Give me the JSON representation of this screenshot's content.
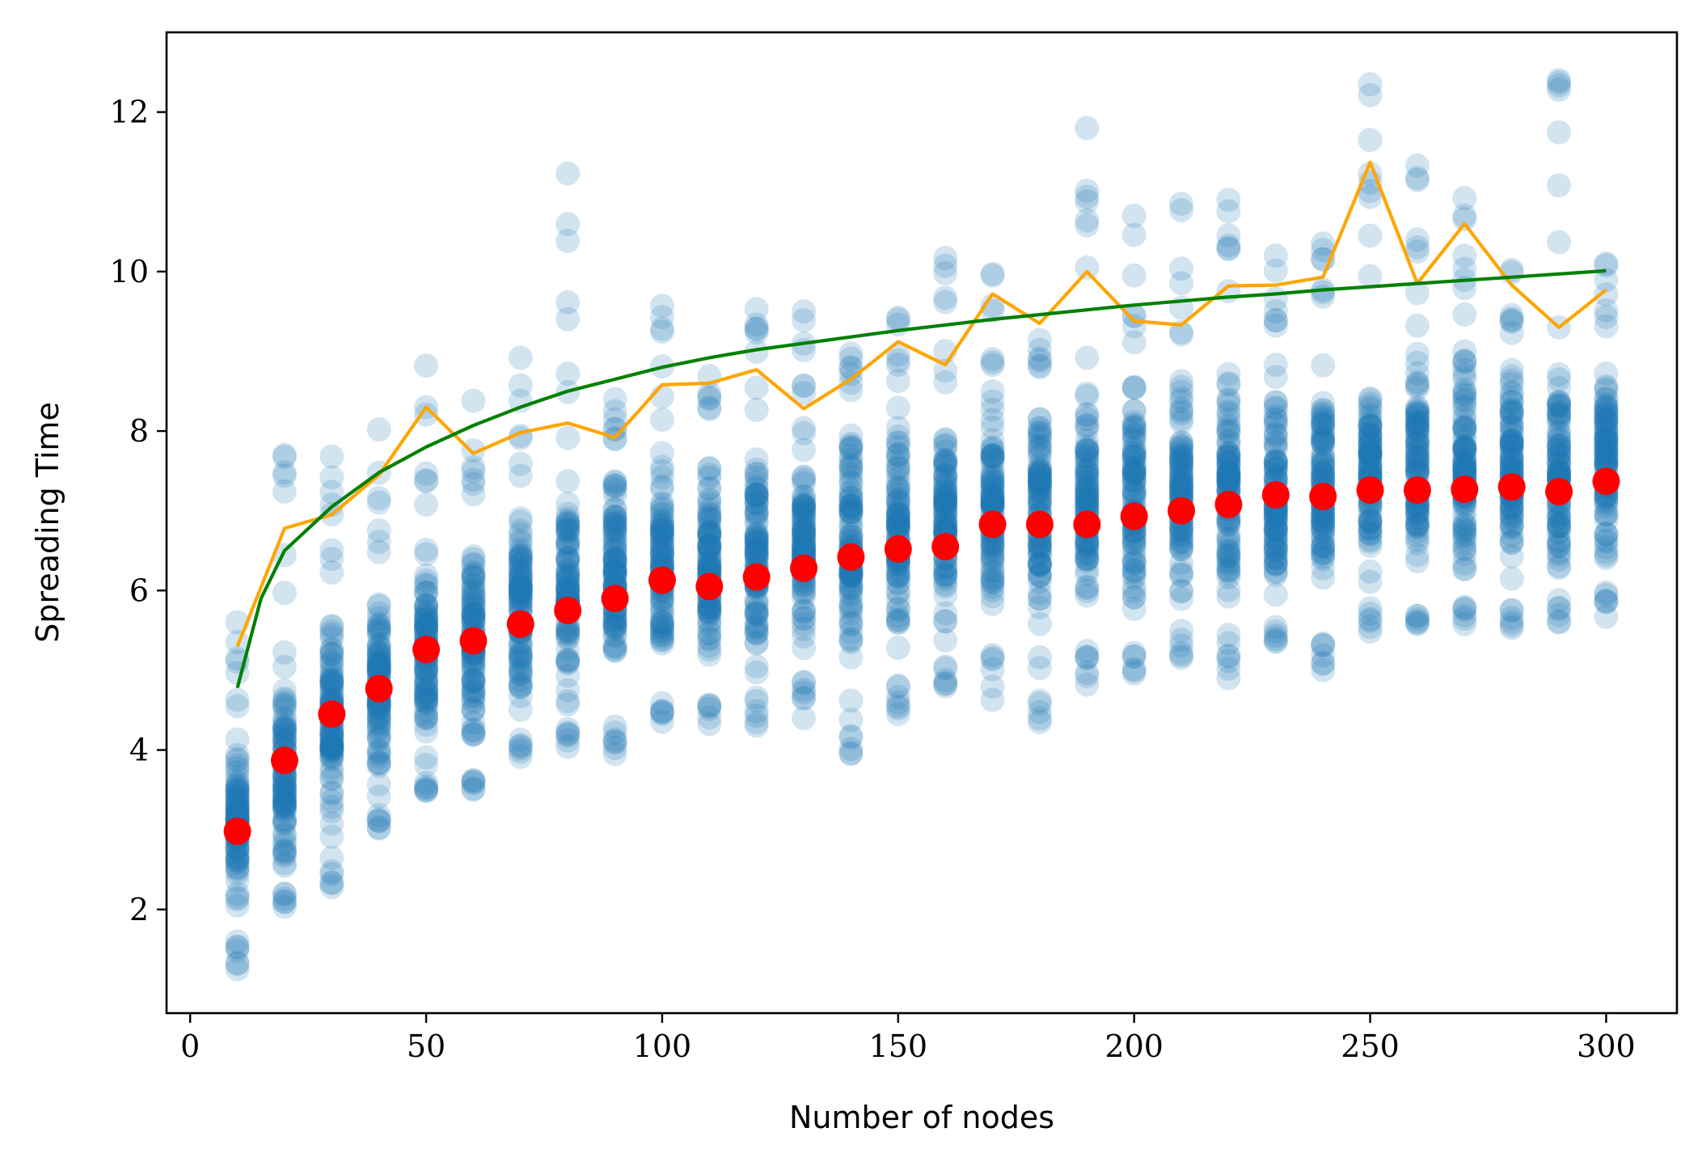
{
  "chart_data": {
    "type": "scatter",
    "xlabel": "Number of nodes",
    "ylabel": "Spreading Time",
    "xlim": [
      -5,
      315
    ],
    "ylim": [
      0.7,
      13.0
    ],
    "xticks": [
      0,
      50,
      100,
      150,
      200,
      250,
      300
    ],
    "yticks": [
      2,
      4,
      6,
      8,
      10,
      12
    ],
    "grid": false,
    "colors": {
      "samples": "#1f77b4",
      "mean": "#ff0000",
      "max": "#ffa500",
      "fit": "#008000"
    },
    "samples": {
      "x": [
        10,
        20,
        30,
        40,
        50,
        60,
        70,
        80,
        90,
        100,
        110,
        120,
        130,
        140,
        150,
        160,
        170,
        180,
        190,
        200,
        210,
        220,
        230,
        240,
        250,
        260,
        270,
        280,
        290,
        300
      ],
      "min": [
        1.25,
        2.0,
        2.28,
        3.0,
        3.45,
        3.5,
        3.9,
        3.9,
        3.95,
        4.35,
        4.3,
        4.25,
        4.4,
        3.95,
        4.45,
        4.75,
        4.55,
        4.35,
        4.82,
        4.95,
        5.1,
        4.9,
        5.35,
        5.0,
        5.48,
        5.55,
        5.5,
        5.52,
        5.48,
        5.65
      ],
      "dense_min": [
        1.6,
        2.2,
        3.0,
        3.2,
        3.6,
        3.7,
        4.2,
        4.3,
        4.4,
        4.6,
        4.6,
        4.7,
        4.9,
        4.9,
        5.0,
        5.1,
        5.2,
        5.3,
        5.4,
        5.3,
        5.5,
        5.5,
        5.6,
        5.6,
        5.8,
        5.7,
        5.8,
        5.8,
        5.9,
        6.0
      ],
      "dense_max": [
        4.5,
        5.2,
        5.9,
        6.3,
        6.8,
        7.1,
        7.3,
        7.6,
        7.8,
        8.0,
        8.1,
        8.1,
        8.3,
        8.4,
        8.6,
        8.6,
        8.8,
        8.8,
        8.9,
        8.9,
        9.0,
        9.1,
        9.1,
        9.1,
        9.2,
        9.2,
        9.3,
        9.2,
        9.2,
        9.3
      ],
      "max": [
        5.6,
        7.7,
        7.68,
        8.02,
        8.82,
        8.38,
        8.92,
        11.23,
        8.4,
        9.57,
        8.82,
        9.53,
        9.5,
        8.97,
        9.42,
        10.17,
        9.97,
        9.35,
        11.8,
        10.7,
        10.85,
        10.9,
        10.2,
        10.35,
        12.35,
        11.33,
        10.92,
        10.02,
        12.4,
        10.1
      ],
      "outliers": [
        [
          80,
          11.23
        ],
        [
          190,
          11.8
        ],
        [
          250,
          12.35
        ],
        [
          250,
          11.65
        ],
        [
          290,
          12.4
        ],
        [
          260,
          11.33
        ],
        [
          200,
          10.7
        ],
        [
          210,
          10.85
        ],
        [
          220,
          10.9
        ],
        [
          100,
          9.57
        ],
        [
          160,
          10.17
        ],
        [
          10,
          5.6
        ],
        [
          20,
          7.7
        ],
        [
          20,
          7.48
        ],
        [
          30,
          7.68
        ],
        [
          30,
          7.42
        ],
        [
          40,
          8.02
        ],
        [
          50,
          8.82
        ],
        [
          60,
          8.38
        ],
        [
          70,
          8.92
        ],
        [
          80,
          8.72
        ],
        [
          90,
          8.4
        ],
        [
          120,
          9.53
        ],
        [
          120,
          9.28
        ],
        [
          130,
          9.5
        ],
        [
          140,
          8.97
        ],
        [
          150,
          9.42
        ],
        [
          160,
          9.67
        ],
        [
          170,
          9.97
        ],
        [
          190,
          10.05
        ],
        [
          230,
          10.2
        ],
        [
          240,
          10.35
        ],
        [
          250,
          10.45
        ],
        [
          260,
          10.25
        ],
        [
          270,
          10.92
        ],
        [
          270,
          10.7
        ],
        [
          280,
          10.02
        ],
        [
          290,
          9.3
        ],
        [
          300,
          10.1
        ],
        [
          90,
          3.95
        ],
        [
          140,
          3.95
        ],
        [
          180,
          4.35
        ],
        [
          150,
          4.45
        ],
        [
          130,
          4.4
        ],
        [
          30,
          2.28
        ],
        [
          10,
          1.25
        ],
        [
          220,
          4.9
        ],
        [
          240,
          5.0
        ],
        [
          190,
          4.82
        ]
      ]
    },
    "series": [
      {
        "name": "",
        "kind": "mean",
        "x": [
          10,
          20,
          30,
          40,
          50,
          60,
          70,
          80,
          90,
          100,
          110,
          120,
          130,
          140,
          150,
          160,
          170,
          180,
          190,
          200,
          210,
          220,
          230,
          240,
          250,
          260,
          270,
          280,
          290,
          300
        ],
        "y": [
          2.98,
          3.87,
          4.45,
          4.77,
          5.26,
          5.37,
          5.58,
          5.75,
          5.9,
          6.13,
          6.05,
          6.17,
          6.28,
          6.42,
          6.52,
          6.55,
          6.83,
          6.83,
          6.83,
          6.93,
          7.0,
          7.08,
          7.2,
          7.18,
          7.26,
          7.26,
          7.27,
          7.3,
          7.24,
          7.37
        ]
      },
      {
        "name": "",
        "kind": "max",
        "x": [
          10,
          20,
          30,
          40,
          50,
          60,
          70,
          80,
          90,
          100,
          110,
          120,
          130,
          140,
          150,
          160,
          170,
          180,
          190,
          200,
          210,
          220,
          230,
          240,
          250,
          260,
          270,
          280,
          290,
          300
        ],
        "y": [
          5.3,
          6.78,
          6.95,
          7.45,
          8.3,
          7.72,
          7.98,
          8.1,
          7.92,
          8.58,
          8.6,
          8.77,
          8.28,
          8.65,
          9.12,
          8.83,
          9.72,
          9.35,
          10.0,
          9.38,
          9.33,
          9.82,
          9.83,
          9.93,
          11.37,
          9.85,
          10.6,
          9.83,
          9.3,
          9.77
        ]
      },
      {
        "name": "",
        "kind": "fit",
        "x": [
          10,
          15,
          20,
          30,
          40,
          50,
          60,
          70,
          80,
          90,
          100,
          110,
          120,
          130,
          140,
          150,
          160,
          170,
          180,
          190,
          200,
          210,
          220,
          230,
          240,
          250,
          260,
          270,
          280,
          290,
          300
        ],
        "y": [
          4.78,
          5.9,
          6.5,
          7.05,
          7.48,
          7.8,
          8.07,
          8.3,
          8.5,
          8.65,
          8.8,
          8.92,
          9.02,
          9.1,
          9.18,
          9.26,
          9.33,
          9.4,
          9.46,
          9.52,
          9.58,
          9.63,
          9.68,
          9.72,
          9.77,
          9.81,
          9.85,
          9.89,
          9.93,
          9.97,
          10.01
        ]
      }
    ]
  }
}
